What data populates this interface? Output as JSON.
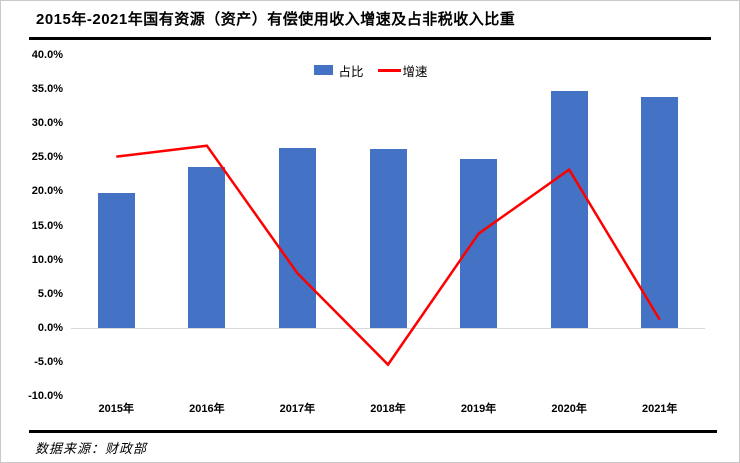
{
  "page": {
    "title": "2015年-2021年国有资源（资产）有偿使用收入增速及占非税收入比重",
    "source": "数据来源：财政部"
  },
  "legend": {
    "bar_label": "占比",
    "line_label": "增速"
  },
  "colors": {
    "bar": "#4472C4",
    "line": "#FF0000",
    "zero_axis": "#D9D9D9",
    "rule": "#000000"
  },
  "chart_data": {
    "type": "combo",
    "title": "2015年-2021年国有资源（资产）有偿使用收入增速及占非税收入比重",
    "categories": [
      "2015年",
      "2016年",
      "2017年",
      "2018年",
      "2019年",
      "2020年",
      "2021年"
    ],
    "series": [
      {
        "name": "占比",
        "type": "bar",
        "color": "#4472C4",
        "unit": "%",
        "values": [
          19.8,
          23.6,
          26.4,
          26.2,
          24.8,
          34.7,
          33.9
        ]
      },
      {
        "name": "增速",
        "type": "line",
        "color": "#FF0000",
        "unit": "%",
        "values": [
          25.1,
          26.7,
          8.0,
          -5.4,
          13.8,
          23.2,
          1.2
        ]
      }
    ],
    "xlabel": "",
    "ylabel": "",
    "ylim": [
      -10,
      40
    ],
    "ytick_step": 5,
    "ytick_labels": [
      "40.0%",
      "35.0%",
      "30.0%",
      "25.0%",
      "20.0%",
      "15.0%",
      "10.0%",
      "5.0%",
      "0.0%",
      "-5.0%",
      "-10.0%"
    ],
    "grid": false,
    "legend_position": "top-center",
    "source": "数据来源：财政部"
  }
}
